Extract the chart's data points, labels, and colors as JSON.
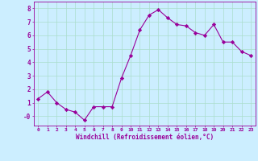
{
  "x": [
    0,
    1,
    2,
    3,
    4,
    5,
    6,
    7,
    8,
    9,
    10,
    11,
    12,
    13,
    14,
    15,
    16,
    17,
    18,
    19,
    20,
    21,
    22,
    23
  ],
  "y": [
    1.3,
    1.8,
    1.0,
    0.5,
    0.3,
    -0.3,
    0.7,
    0.7,
    0.7,
    2.8,
    4.5,
    6.4,
    7.5,
    7.9,
    7.3,
    6.8,
    6.7,
    6.2,
    6.0,
    6.8,
    5.5,
    5.5,
    4.8,
    4.5
  ],
  "line_color": "#990099",
  "marker_color": "#990099",
  "bg_color": "#cceeff",
  "grid_color": "#aaddcc",
  "xlabel": "Windchill (Refroidissement éolien,°C)",
  "xlabel_color": "#990099",
  "tick_color": "#990099",
  "ylim": [
    -0.7,
    8.5
  ],
  "xlim": [
    -0.5,
    23.5
  ],
  "yticks": [
    0,
    1,
    2,
    3,
    4,
    5,
    6,
    7,
    8
  ],
  "xticks": [
    0,
    1,
    2,
    3,
    4,
    5,
    6,
    7,
    8,
    9,
    10,
    11,
    12,
    13,
    14,
    15,
    16,
    17,
    18,
    19,
    20,
    21,
    22,
    23
  ],
  "xtick_labels": [
    "0",
    "1",
    "2",
    "3",
    "4",
    "5",
    "6",
    "7",
    "8",
    "9",
    "10",
    "11",
    "12",
    "13",
    "14",
    "15",
    "16",
    "17",
    "18",
    "19",
    "20",
    "21",
    "22",
    "23"
  ],
  "ytick_labels": [
    "-0",
    "1",
    "2",
    "3",
    "4",
    "5",
    "6",
    "7",
    "8"
  ]
}
